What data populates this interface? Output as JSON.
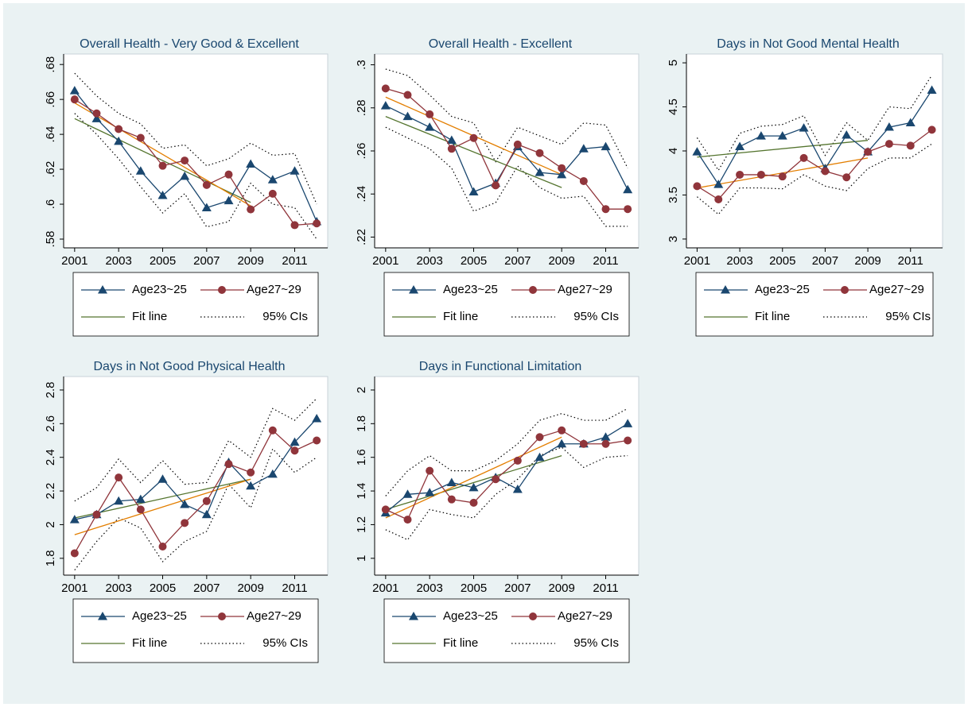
{
  "chart_data": [
    {
      "type": "line",
      "title": "Overall Health - Very Good & Excellent",
      "x": [
        2001,
        2002,
        2003,
        2004,
        2005,
        2006,
        2007,
        2008,
        2009,
        2010,
        2011,
        2012
      ],
      "xlim": [
        2000.5,
        2012.5
      ],
      "xticks": [
        2001,
        2003,
        2005,
        2007,
        2009,
        2011
      ],
      "ylim": [
        0.575,
        0.686
      ],
      "yticks": [
        {
          "value": 0.58,
          "label": ".58"
        },
        {
          "value": 0.6,
          "label": ".6"
        },
        {
          "value": 0.62,
          "label": ".62"
        },
        {
          "value": 0.64,
          "label": ".64"
        },
        {
          "value": 0.66,
          "label": ".66"
        },
        {
          "value": 0.68,
          "label": ".68"
        }
      ],
      "series": [
        {
          "name": "Age23~25",
          "color": "#1a476f",
          "marker": "triangle",
          "values": [
            0.665,
            0.649,
            0.636,
            0.619,
            0.605,
            0.616,
            0.598,
            0.602,
            0.623,
            0.614,
            0.619,
            0.59
          ]
        },
        {
          "name": "Age27~29",
          "color": "#90353b",
          "marker": "circle",
          "values": [
            0.66,
            0.652,
            0.643,
            0.638,
            0.622,
            0.625,
            0.611,
            0.617,
            0.597,
            0.606,
            0.588,
            0.589
          ]
        },
        {
          "name": "Fit line",
          "color": "#55752f",
          "x": [
            2001,
            2009
          ],
          "values": [
            0.649,
            0.601
          ]
        },
        {
          "color": "#e37e00",
          "x": [
            2001,
            2009
          ],
          "values": [
            0.658,
            0.599
          ]
        },
        {
          "name": "95% CIs",
          "color": "#000000",
          "dash": true,
          "values": [
            0.675,
            0.662,
            0.652,
            0.646,
            0.632,
            0.634,
            0.622,
            0.626,
            0.635,
            0.628,
            0.629,
            0.6
          ]
        },
        {
          "color": "#000000",
          "dash": true,
          "values": [
            0.652,
            0.64,
            0.626,
            0.61,
            0.595,
            0.606,
            0.587,
            0.59,
            0.612,
            0.6,
            0.598,
            0.58
          ]
        }
      ]
    },
    {
      "type": "line",
      "title": "Overall Health - Excellent",
      "x": [
        2001,
        2002,
        2003,
        2004,
        2005,
        2006,
        2007,
        2008,
        2009,
        2010,
        2011,
        2012
      ],
      "xlim": [
        2000.5,
        2012.5
      ],
      "xticks": [
        2001,
        2003,
        2005,
        2007,
        2009,
        2011
      ],
      "ylim": [
        0.215,
        0.305
      ],
      "yticks": [
        {
          "value": 0.22,
          "label": ".22"
        },
        {
          "value": 0.24,
          "label": ".24"
        },
        {
          "value": 0.26,
          "label": ".26"
        },
        {
          "value": 0.28,
          "label": ".28"
        },
        {
          "value": 0.3,
          "label": ".3"
        }
      ],
      "series": [
        {
          "name": "Age23~25",
          "color": "#1a476f",
          "marker": "triangle",
          "values": [
            0.281,
            0.276,
            0.271,
            0.265,
            0.241,
            0.245,
            0.262,
            0.25,
            0.249,
            0.261,
            0.262,
            0.242
          ]
        },
        {
          "name": "Age27~29",
          "color": "#90353b",
          "marker": "circle",
          "values": [
            0.289,
            0.286,
            0.277,
            0.261,
            0.266,
            0.244,
            0.263,
            0.259,
            0.252,
            0.246,
            0.233,
            0.233
          ]
        },
        {
          "name": "Fit line",
          "color": "#55752f",
          "x": [
            2001,
            2009
          ],
          "values": [
            0.276,
            0.243
          ]
        },
        {
          "color": "#e37e00",
          "x": [
            2001,
            2009
          ],
          "values": [
            0.285,
            0.249
          ]
        },
        {
          "name": "95% CIs",
          "color": "#000000",
          "dash": true,
          "values": [
            0.298,
            0.295,
            0.286,
            0.276,
            0.273,
            0.255,
            0.271,
            0.267,
            0.263,
            0.273,
            0.272,
            0.252
          ]
        },
        {
          "color": "#000000",
          "dash": true,
          "values": [
            0.271,
            0.266,
            0.261,
            0.252,
            0.232,
            0.236,
            0.253,
            0.243,
            0.238,
            0.239,
            0.225,
            0.225
          ]
        }
      ]
    },
    {
      "type": "line",
      "title": "Days in Not Good Mental Health",
      "x": [
        2001,
        2002,
        2003,
        2004,
        2005,
        2006,
        2007,
        2008,
        2009,
        2010,
        2011,
        2012
      ],
      "xlim": [
        2000.5,
        2012.5
      ],
      "xticks": [
        2001,
        2003,
        2005,
        2007,
        2009,
        2011
      ],
      "ylim": [
        2.9,
        5.1
      ],
      "yticks": [
        3,
        3.5,
        4,
        4.5,
        5
      ],
      "series": [
        {
          "name": "Age23~25",
          "color": "#1a476f",
          "marker": "triangle",
          "values": [
            3.99,
            3.62,
            4.05,
            4.17,
            4.17,
            4.26,
            3.8,
            4.18,
            3.99,
            4.27,
            4.32,
            4.69
          ]
        },
        {
          "name": "Age27~29",
          "color": "#90353b",
          "marker": "circle",
          "values": [
            3.6,
            3.45,
            3.73,
            3.73,
            3.71,
            3.92,
            3.77,
            3.7,
            3.99,
            4.08,
            4.06,
            4.24
          ]
        },
        {
          "name": "Fit line",
          "color": "#55752f",
          "x": [
            2001,
            2009
          ],
          "values": [
            3.93,
            4.12
          ]
        },
        {
          "color": "#e37e00",
          "x": [
            2001,
            2009
          ],
          "values": [
            3.58,
            3.92
          ]
        },
        {
          "name": "95% CIs",
          "color": "#000000",
          "dash": true,
          "values": [
            4.15,
            3.78,
            4.2,
            4.28,
            4.3,
            4.4,
            3.95,
            4.32,
            4.12,
            4.5,
            4.48,
            4.86
          ]
        },
        {
          "color": "#000000",
          "dash": true,
          "values": [
            3.48,
            3.28,
            3.58,
            3.58,
            3.57,
            3.73,
            3.6,
            3.55,
            3.8,
            3.92,
            3.92,
            4.08
          ]
        }
      ]
    },
    {
      "type": "line",
      "title": "Days in Not Good Physical Health",
      "x": [
        2001,
        2002,
        2003,
        2004,
        2005,
        2006,
        2007,
        2008,
        2009,
        2010,
        2011,
        2012
      ],
      "xlim": [
        2000.5,
        2012.5
      ],
      "xticks": [
        2001,
        2003,
        2005,
        2007,
        2009,
        2011
      ],
      "ylim": [
        1.7,
        2.88
      ],
      "yticks": [
        1.8,
        2,
        2.2,
        2.4,
        2.6,
        2.8
      ],
      "series": [
        {
          "name": "Age23~25",
          "color": "#1a476f",
          "marker": "triangle",
          "values": [
            2.03,
            2.06,
            2.14,
            2.15,
            2.27,
            2.12,
            2.06,
            2.37,
            2.23,
            2.3,
            2.49,
            2.63
          ]
        },
        {
          "name": "Age27~29",
          "color": "#90353b",
          "marker": "circle",
          "values": [
            1.83,
            2.06,
            2.28,
            2.09,
            1.87,
            2.01,
            2.14,
            2.36,
            2.31,
            2.56,
            2.44,
            2.5
          ]
        },
        {
          "name": "Fit line",
          "color": "#55752f",
          "x": [
            2001,
            2009
          ],
          "values": [
            2.04,
            2.27
          ]
        },
        {
          "color": "#e37e00",
          "x": [
            2001,
            2009
          ],
          "values": [
            1.94,
            2.27
          ]
        },
        {
          "name": "95% CIs",
          "color": "#000000",
          "dash": true,
          "values": [
            2.14,
            2.22,
            2.39,
            2.25,
            2.38,
            2.24,
            2.25,
            2.5,
            2.4,
            2.69,
            2.62,
            2.75
          ]
        },
        {
          "color": "#000000",
          "dash": true,
          "values": [
            1.73,
            1.9,
            2.04,
            1.98,
            1.78,
            1.9,
            1.96,
            2.24,
            2.1,
            2.45,
            2.31,
            2.4
          ]
        }
      ]
    },
    {
      "type": "line",
      "title": "Days in Functional Limitation",
      "x": [
        2001,
        2002,
        2003,
        2004,
        2005,
        2006,
        2007,
        2008,
        2009,
        2010,
        2011,
        2012
      ],
      "xlim": [
        2000.5,
        2012.5
      ],
      "xticks": [
        2001,
        2003,
        2005,
        2007,
        2009,
        2011
      ],
      "ylim": [
        0.9,
        2.08
      ],
      "yticks": [
        1,
        1.2,
        1.4,
        1.6,
        1.8,
        2
      ],
      "series": [
        {
          "name": "Age23~25",
          "color": "#1a476f",
          "marker": "triangle",
          "values": [
            1.27,
            1.38,
            1.39,
            1.45,
            1.42,
            1.48,
            1.41,
            1.6,
            1.68,
            1.68,
            1.72,
            1.8
          ]
        },
        {
          "name": "Age27~29",
          "color": "#90353b",
          "marker": "circle",
          "values": [
            1.29,
            1.23,
            1.52,
            1.35,
            1.33,
            1.47,
            1.58,
            1.72,
            1.76,
            1.68,
            1.68,
            1.7
          ]
        },
        {
          "name": "Fit line",
          "color": "#55752f",
          "x": [
            2001,
            2009
          ],
          "values": [
            1.29,
            1.61
          ]
        },
        {
          "color": "#e37e00",
          "x": [
            2001,
            2009
          ],
          "values": [
            1.24,
            1.72
          ]
        },
        {
          "name": "95% CIs",
          "color": "#000000",
          "dash": true,
          "values": [
            1.37,
            1.52,
            1.61,
            1.52,
            1.52,
            1.58,
            1.68,
            1.82,
            1.86,
            1.82,
            1.82,
            1.89
          ]
        },
        {
          "color": "#000000",
          "dash": true,
          "values": [
            1.17,
            1.11,
            1.29,
            1.26,
            1.24,
            1.38,
            1.47,
            1.61,
            1.66,
            1.54,
            1.6,
            1.61
          ]
        }
      ]
    }
  ]
}
